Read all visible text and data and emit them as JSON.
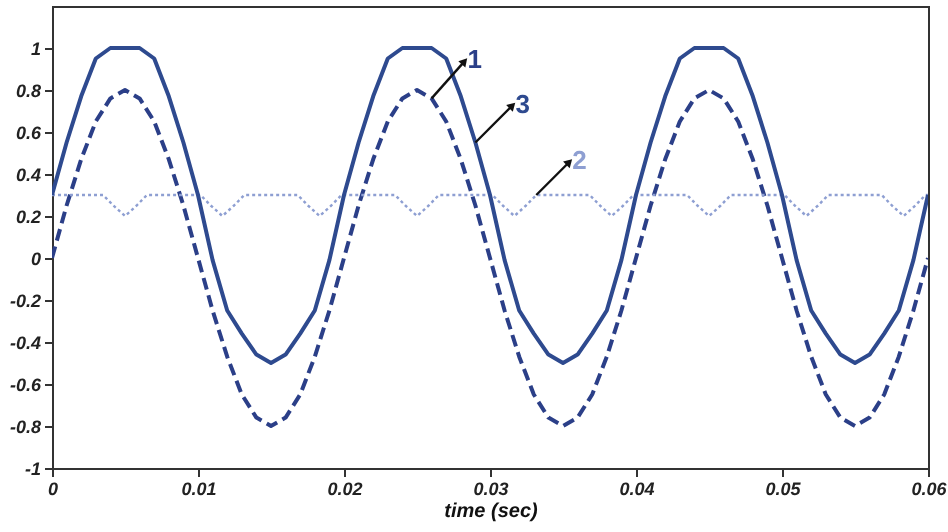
{
  "chart_data": {
    "type": "line",
    "xlabel": "time (sec)",
    "x": [
      0,
      0.001,
      0.002,
      0.003,
      0.004,
      0.005,
      0.006,
      0.007,
      0.008,
      0.009,
      0.01,
      0.011,
      0.012,
      0.013,
      0.014,
      0.015,
      0.016,
      0.017,
      0.018,
      0.019,
      0.02,
      0.021,
      0.022,
      0.023,
      0.024,
      0.025,
      0.026,
      0.027,
      0.028,
      0.029,
      0.03,
      0.031,
      0.032,
      0.033,
      0.034,
      0.035,
      0.036,
      0.037,
      0.038,
      0.039,
      0.04,
      0.041,
      0.042,
      0.043,
      0.044,
      0.045,
      0.046,
      0.047,
      0.048,
      0.049,
      0.05,
      0.051,
      0.052,
      0.053,
      0.054,
      0.055,
      0.056,
      0.057,
      0.058,
      0.059,
      0.06
    ],
    "series": [
      {
        "name": "1",
        "color": "#2b3f88",
        "line_style": "dashed",
        "values": [
          0,
          0.25,
          0.47,
          0.65,
          0.76,
          0.8,
          0.76,
          0.65,
          0.47,
          0.25,
          0,
          -0.25,
          -0.47,
          -0.65,
          -0.76,
          -0.8,
          -0.76,
          -0.65,
          -0.47,
          -0.25,
          0,
          0.25,
          0.47,
          0.65,
          0.76,
          0.8,
          0.76,
          0.65,
          0.47,
          0.25,
          0,
          -0.25,
          -0.47,
          -0.65,
          -0.76,
          -0.8,
          -0.76,
          -0.65,
          -0.47,
          -0.25,
          0,
          0.25,
          0.47,
          0.65,
          0.76,
          0.8,
          0.76,
          0.65,
          0.47,
          0.25,
          0,
          -0.25,
          -0.47,
          -0.65,
          -0.76,
          -0.8,
          -0.76,
          -0.65,
          -0.47,
          -0.25,
          0
        ]
      },
      {
        "name": "2",
        "color": "#8e9fd2",
        "line_style": "dotted",
        "x": [
          0,
          0.0035,
          0.0042,
          0.005,
          0.0058,
          0.0065,
          0.01017,
          0.01087,
          0.01167,
          0.01247,
          0.01317,
          0.01683,
          0.01753,
          0.01833,
          0.01913,
          0.01983,
          0.0235,
          0.0242,
          0.025,
          0.0258,
          0.0265,
          0.03017,
          0.03087,
          0.03167,
          0.03247,
          0.03317,
          0.03683,
          0.03753,
          0.03833,
          0.03913,
          0.03983,
          0.0435,
          0.0442,
          0.045,
          0.0458,
          0.0465,
          0.05017,
          0.05087,
          0.05167,
          0.05247,
          0.05317,
          0.05683,
          0.05753,
          0.05833,
          0.05913,
          0.05983,
          0.06
        ],
        "values": [
          0.3,
          0.3,
          0.25,
          0.2,
          0.25,
          0.3,
          0.3,
          0.25,
          0.2,
          0.25,
          0.3,
          0.3,
          0.25,
          0.2,
          0.25,
          0.3,
          0.3,
          0.25,
          0.2,
          0.25,
          0.3,
          0.3,
          0.25,
          0.2,
          0.25,
          0.3,
          0.3,
          0.25,
          0.2,
          0.25,
          0.3,
          0.3,
          0.25,
          0.2,
          0.25,
          0.3,
          0.3,
          0.25,
          0.2,
          0.25,
          0.3,
          0.3,
          0.25,
          0.2,
          0.25,
          0.3,
          0.3
        ]
      },
      {
        "name": "3",
        "color": "#2e4a8f",
        "line_style": "solid",
        "values": [
          0.3,
          0.55,
          0.77,
          0.95,
          1,
          1,
          1,
          0.95,
          0.77,
          0.55,
          0.3,
          -0.01,
          -0.25,
          -0.36,
          -0.46,
          -0.5,
          -0.46,
          -0.36,
          -0.25,
          -0.01,
          0.3,
          0.55,
          0.77,
          0.95,
          1,
          1,
          1,
          0.95,
          0.77,
          0.55,
          0.3,
          -0.01,
          -0.25,
          -0.36,
          -0.46,
          -0.5,
          -0.46,
          -0.36,
          -0.25,
          -0.01,
          0.3,
          0.55,
          0.77,
          0.95,
          1,
          1,
          1,
          0.95,
          0.77,
          0.55,
          0.3,
          -0.01,
          -0.25,
          -0.36,
          -0.46,
          -0.5,
          -0.46,
          -0.36,
          -0.25,
          -0.01,
          0.3
        ]
      }
    ],
    "xlim": [
      0,
      0.06
    ],
    "xticks": [
      0,
      0.01,
      0.02,
      0.03,
      0.04,
      0.05,
      0.06
    ],
    "ylim": [
      -1,
      1.2
    ],
    "yticks": [
      -1,
      -0.8,
      -0.6,
      -0.4,
      -0.2,
      0,
      0.2,
      0.4,
      0.6,
      0.8,
      1
    ]
  }
}
